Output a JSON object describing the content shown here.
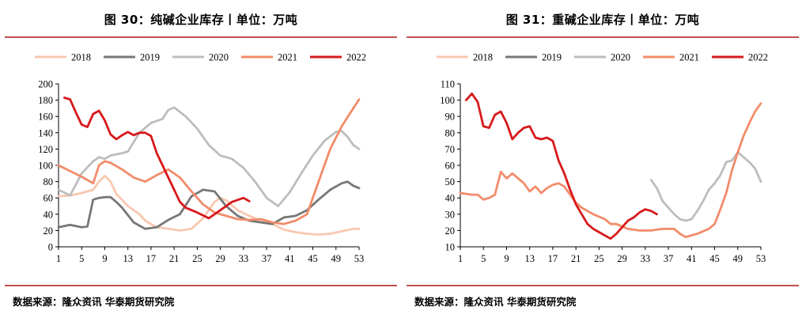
{
  "colors": {
    "2018": "#f8c8b0",
    "2019": "#777777",
    "2020": "#bdbdbd",
    "2021": "#f28c6a",
    "2022": "#d7191c",
    "accent_rule": "#c0504d"
  },
  "source_text": "数据来源：隆众资讯 华泰期货研究院",
  "chart_data": [
    {
      "type": "line",
      "title": "图 30：纯碱企业库存丨单位：万吨",
      "xlabel": "",
      "ylabel": "",
      "x_ticks": [
        1,
        5,
        9,
        13,
        17,
        21,
        25,
        29,
        33,
        37,
        41,
        45,
        49,
        53
      ],
      "xlim": [
        1,
        53
      ],
      "ylim": [
        0,
        200
      ],
      "y_ticks": [
        0,
        20,
        40,
        60,
        80,
        100,
        120,
        140,
        160,
        180,
        200
      ],
      "grid": false,
      "legend_position": "top",
      "series": [
        {
          "name": "2018",
          "color": "#f8c8b0",
          "points": [
            [
              1,
              62
            ],
            [
              3,
              63
            ],
            [
              5,
              66
            ],
            [
              7,
              70
            ],
            [
              8,
              80
            ],
            [
              9,
              87
            ],
            [
              10,
              80
            ],
            [
              11,
              65
            ],
            [
              13,
              50
            ],
            [
              15,
              40
            ],
            [
              16,
              32
            ],
            [
              18,
              24
            ],
            [
              20,
              22
            ],
            [
              22,
              20
            ],
            [
              24,
              22
            ],
            [
              26,
              35
            ],
            [
              28,
              55
            ],
            [
              29,
              60
            ],
            [
              30,
              57
            ],
            [
              32,
              45
            ],
            [
              34,
              38
            ],
            [
              36,
              32
            ],
            [
              38,
              28
            ],
            [
              40,
              21
            ],
            [
              42,
              18
            ],
            [
              44,
              16
            ],
            [
              46,
              15
            ],
            [
              48,
              16
            ],
            [
              50,
              19
            ],
            [
              52,
              22
            ],
            [
              53,
              22
            ]
          ]
        },
        {
          "name": "2019",
          "color": "#777777",
          "points": [
            [
              1,
              24
            ],
            [
              3,
              27
            ],
            [
              5,
              24
            ],
            [
              6,
              25
            ],
            [
              7,
              58
            ],
            [
              8,
              60
            ],
            [
              9,
              61
            ],
            [
              10,
              61
            ],
            [
              11,
              55
            ],
            [
              12,
              48
            ],
            [
              14,
              30
            ],
            [
              16,
              22
            ],
            [
              18,
              24
            ],
            [
              20,
              33
            ],
            [
              22,
              40
            ],
            [
              24,
              62
            ],
            [
              26,
              70
            ],
            [
              28,
              68
            ],
            [
              30,
              50
            ],
            [
              32,
              38
            ],
            [
              34,
              32
            ],
            [
              36,
              30
            ],
            [
              38,
              28
            ],
            [
              40,
              36
            ],
            [
              42,
              38
            ],
            [
              44,
              45
            ],
            [
              46,
              58
            ],
            [
              48,
              70
            ],
            [
              50,
              78
            ],
            [
              51,
              80
            ],
            [
              52,
              75
            ],
            [
              53,
              72
            ]
          ]
        },
        {
          "name": "2020",
          "color": "#bdbdbd",
          "points": [
            [
              1,
              70
            ],
            [
              3,
              63
            ],
            [
              5,
              90
            ],
            [
              7,
              105
            ],
            [
              8,
              110
            ],
            [
              9,
              108
            ],
            [
              10,
              112
            ],
            [
              12,
              115
            ],
            [
              13,
              117
            ],
            [
              15,
              140
            ],
            [
              17,
              152
            ],
            [
              19,
              157
            ],
            [
              20,
              168
            ],
            [
              21,
              171
            ],
            [
              23,
              160
            ],
            [
              25,
              145
            ],
            [
              27,
              125
            ],
            [
              29,
              112
            ],
            [
              31,
              108
            ],
            [
              33,
              97
            ],
            [
              35,
              80
            ],
            [
              37,
              60
            ],
            [
              39,
              50
            ],
            [
              41,
              67
            ],
            [
              43,
              90
            ],
            [
              45,
              112
            ],
            [
              47,
              130
            ],
            [
              49,
              141
            ],
            [
              50,
              142
            ],
            [
              51,
              135
            ],
            [
              52,
              125
            ],
            [
              53,
              120
            ]
          ]
        },
        {
          "name": "2021",
          "color": "#f28c6a",
          "points": [
            [
              1,
              100
            ],
            [
              3,
              93
            ],
            [
              5,
              86
            ],
            [
              7,
              78
            ],
            [
              8,
              100
            ],
            [
              9,
              105
            ],
            [
              10,
              103
            ],
            [
              12,
              95
            ],
            [
              14,
              85
            ],
            [
              16,
              80
            ],
            [
              18,
              88
            ],
            [
              20,
              95
            ],
            [
              22,
              85
            ],
            [
              24,
              68
            ],
            [
              26,
              52
            ],
            [
              28,
              42
            ],
            [
              30,
              38
            ],
            [
              32,
              34
            ],
            [
              34,
              33
            ],
            [
              36,
              34
            ],
            [
              38,
              30
            ],
            [
              40,
              28
            ],
            [
              42,
              32
            ],
            [
              44,
              40
            ],
            [
              46,
              80
            ],
            [
              48,
              120
            ],
            [
              50,
              148
            ],
            [
              52,
              170
            ],
            [
              53,
              181
            ]
          ]
        },
        {
          "name": "2022",
          "color": "#d7191c",
          "points": [
            [
              2,
              183
            ],
            [
              3,
              181
            ],
            [
              4,
              165
            ],
            [
              5,
              150
            ],
            [
              6,
              147
            ],
            [
              7,
              163
            ],
            [
              8,
              167
            ],
            [
              9,
              155
            ],
            [
              10,
              138
            ],
            [
              11,
              132
            ],
            [
              12,
              137
            ],
            [
              13,
              141
            ],
            [
              14,
              137
            ],
            [
              15,
              140
            ],
            [
              16,
              140
            ],
            [
              17,
              136
            ],
            [
              18,
              115
            ],
            [
              19,
              100
            ],
            [
              20,
              85
            ],
            [
              21,
              70
            ],
            [
              22,
              55
            ],
            [
              23,
              48
            ],
            [
              25,
              42
            ],
            [
              27,
              35
            ],
            [
              29,
              45
            ],
            [
              31,
              55
            ],
            [
              33,
              60
            ],
            [
              34,
              56
            ]
          ]
        }
      ]
    },
    {
      "type": "line",
      "title": "图 31：重碱企业库存丨单位：万吨",
      "xlabel": "",
      "ylabel": "",
      "x_ticks": [
        1,
        5,
        9,
        13,
        17,
        21,
        25,
        29,
        33,
        37,
        41,
        45,
        49,
        53
      ],
      "xlim": [
        1,
        53
      ],
      "ylim": [
        10,
        110
      ],
      "y_ticks": [
        10,
        20,
        30,
        40,
        50,
        60,
        70,
        80,
        90,
        100,
        110
      ],
      "grid": false,
      "legend_position": "top",
      "series": [
        {
          "name": "2018",
          "color": "#f8c8b0",
          "points": []
        },
        {
          "name": "2019",
          "color": "#777777",
          "points": []
        },
        {
          "name": "2020",
          "color": "#bdbdbd",
          "points": [
            [
              34,
              51
            ],
            [
              35,
              46
            ],
            [
              36,
              38
            ],
            [
              37,
              34
            ],
            [
              38,
              30
            ],
            [
              39,
              27
            ],
            [
              40,
              26
            ],
            [
              41,
              27
            ],
            [
              42,
              32
            ],
            [
              43,
              38
            ],
            [
              44,
              45
            ],
            [
              45,
              49
            ],
            [
              46,
              54
            ],
            [
              47,
              62
            ],
            [
              48,
              63
            ],
            [
              49,
              68
            ],
            [
              50,
              65
            ],
            [
              51,
              62
            ],
            [
              52,
              58
            ],
            [
              53,
              50
            ]
          ]
        },
        {
          "name": "2021",
          "color": "#f28c6a",
          "points": [
            [
              1,
              43
            ],
            [
              3,
              42
            ],
            [
              4,
              42
            ],
            [
              5,
              39
            ],
            [
              6,
              40
            ],
            [
              7,
              42
            ],
            [
              8,
              56
            ],
            [
              9,
              52
            ],
            [
              10,
              55
            ],
            [
              11,
              52
            ],
            [
              12,
              49
            ],
            [
              13,
              44
            ],
            [
              14,
              47
            ],
            [
              15,
              43
            ],
            [
              16,
              46
            ],
            [
              17,
              48
            ],
            [
              18,
              49
            ],
            [
              19,
              47
            ],
            [
              20,
              42
            ],
            [
              21,
              37
            ],
            [
              22,
              34
            ],
            [
              24,
              30
            ],
            [
              26,
              27
            ],
            [
              27,
              24
            ],
            [
              28,
              24
            ],
            [
              30,
              21
            ],
            [
              32,
              20
            ],
            [
              34,
              20
            ],
            [
              36,
              21
            ],
            [
              38,
              21
            ],
            [
              39,
              18
            ],
            [
              40,
              16
            ],
            [
              41,
              17
            ],
            [
              42,
              18
            ],
            [
              44,
              21
            ],
            [
              45,
              24
            ],
            [
              46,
              33
            ],
            [
              47,
              43
            ],
            [
              48,
              57
            ],
            [
              49,
              68
            ],
            [
              50,
              78
            ],
            [
              51,
              86
            ],
            [
              52,
              93
            ],
            [
              53,
              98
            ]
          ]
        },
        {
          "name": "2022",
          "color": "#d7191c",
          "points": [
            [
              2,
              100
            ],
            [
              3,
              104
            ],
            [
              4,
              99
            ],
            [
              5,
              84
            ],
            [
              6,
              83
            ],
            [
              7,
              91
            ],
            [
              8,
              93
            ],
            [
              9,
              86
            ],
            [
              10,
              76
            ],
            [
              11,
              80
            ],
            [
              12,
              83
            ],
            [
              13,
              84
            ],
            [
              14,
              77
            ],
            [
              15,
              76
            ],
            [
              16,
              77
            ],
            [
              17,
              75
            ],
            [
              18,
              63
            ],
            [
              19,
              55
            ],
            [
              20,
              45
            ],
            [
              21,
              36
            ],
            [
              22,
              30
            ],
            [
              23,
              24
            ],
            [
              24,
              21
            ],
            [
              25,
              19
            ],
            [
              26,
              17
            ],
            [
              27,
              15
            ],
            [
              28,
              18
            ],
            [
              29,
              22
            ],
            [
              30,
              26
            ],
            [
              31,
              28
            ],
            [
              32,
              31
            ],
            [
              33,
              33
            ],
            [
              34,
              32
            ],
            [
              35,
              30
            ]
          ]
        }
      ]
    }
  ]
}
